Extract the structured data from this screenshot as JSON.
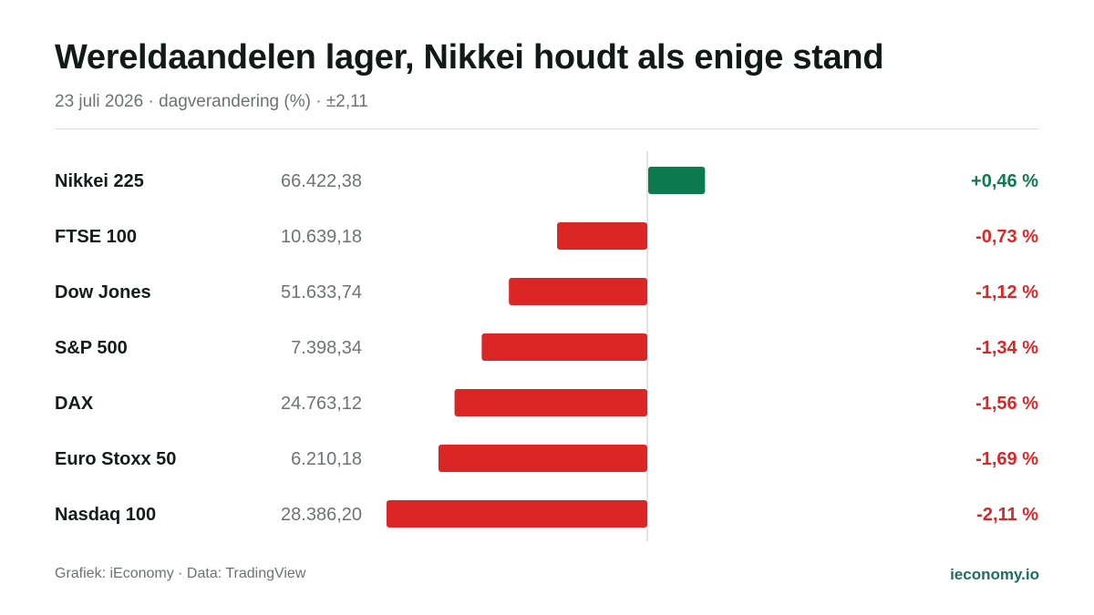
{
  "header": {
    "title": "Wereldaandelen lager, Nikkei houdt als enige stand",
    "subtitle": "23 juli 2026 · dagverandering (%) · ±2,11"
  },
  "footer": {
    "source": "Grafiek: iEconomy · Data: TradingView",
    "brand": "ieconomy.io"
  },
  "colors": {
    "positive": "#0d7a4e",
    "negative": "#dc2626",
    "axis": "#d8dcda"
  },
  "chart_data": {
    "type": "bar",
    "orientation": "horizontal",
    "title": "Wereldaandelen lager, Nikkei houdt als enige stand",
    "subtitle": "23 juli 2026 · dagverandering (%) · ±2,11",
    "xlim": [
      -2.11,
      2.11
    ],
    "grid": false,
    "legend": "none",
    "categories": [
      "Nikkei 225",
      "FTSE 100",
      "Dow Jones",
      "S&P 500",
      "DAX",
      "Euro Stoxx 50",
      "Nasdaq 100"
    ],
    "levels": [
      "66.422,38",
      "10.639,18",
      "51.633,74",
      "7.398,34",
      "24.763,12",
      "6.210,18",
      "28.386,20"
    ],
    "values": [
      0.46,
      -0.73,
      -1.12,
      -1.34,
      -1.56,
      -1.69,
      -2.11
    ],
    "value_labels": [
      "+0,46 %",
      "-0,73 %",
      "-1,12 %",
      "-1,34 %",
      "-1,56 %",
      "-1,69 %",
      "-2,11 %"
    ]
  }
}
